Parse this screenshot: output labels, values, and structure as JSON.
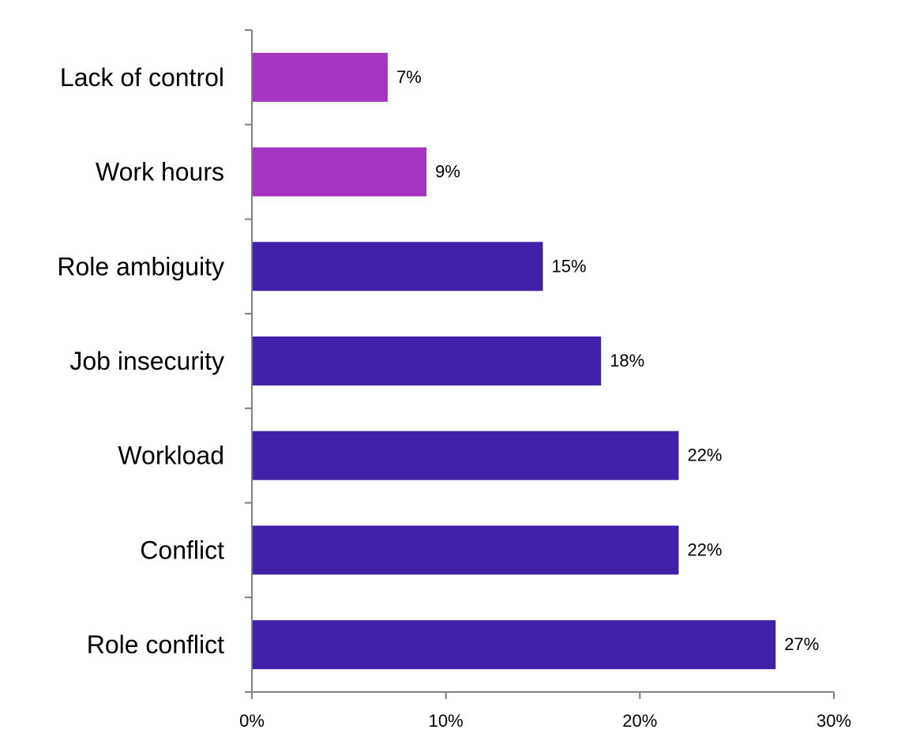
{
  "chart_data": {
    "type": "bar",
    "orientation": "horizontal",
    "title": "",
    "xlabel": "",
    "ylabel": "",
    "categories": [
      "Lack of control",
      "Work hours",
      "Role ambiguity",
      "Job insecurity",
      "Workload",
      "Conflict",
      "Role conflict"
    ],
    "values": [
      7,
      9,
      15,
      18,
      22,
      22,
      27
    ],
    "value_labels": [
      "7%",
      "9%",
      "15%",
      "18%",
      "22%",
      "22%",
      "27%"
    ],
    "bar_colors": [
      "#a535c0",
      "#a535c0",
      "#4121a8",
      "#4121a8",
      "#4121a8",
      "#4121a8",
      "#4121a8"
    ],
    "xlim": [
      0,
      30
    ],
    "x_ticks": [
      0,
      10,
      20,
      30
    ],
    "x_tick_labels": [
      "0%",
      "10%",
      "20%",
      "30%"
    ],
    "grid": false,
    "legend": "none"
  }
}
